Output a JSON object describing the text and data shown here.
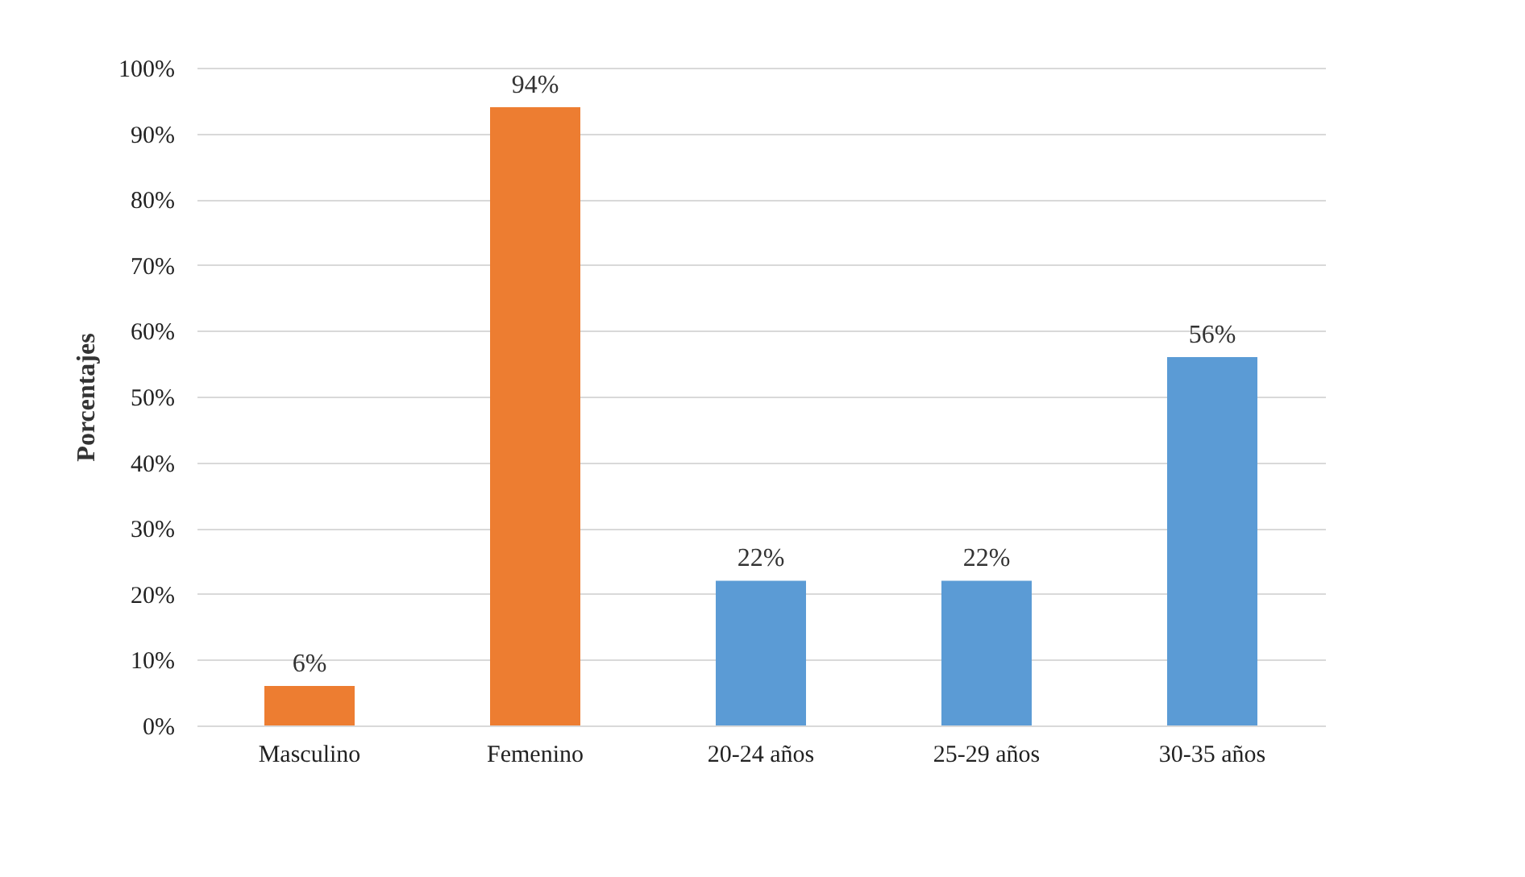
{
  "chart_data": {
    "type": "bar",
    "categories": [
      "Masculino",
      "Femenino",
      "20-24 años",
      "25-29 años",
      "30-35 años"
    ],
    "values": [
      6,
      94,
      22,
      22,
      56
    ],
    "colors": [
      "#ed7d31",
      "#ed7d31",
      "#5b9bd5",
      "#5b9bd5",
      "#5b9bd5"
    ],
    "value_labels": [
      "6%",
      "94%",
      "22%",
      "22%",
      "56%"
    ],
    "ylabel": "Porcentajes",
    "ylim": [
      0,
      100
    ],
    "yticks": [
      {
        "value": 0,
        "label": "0%"
      },
      {
        "value": 10,
        "label": "10%"
      },
      {
        "value": 20,
        "label": "20%"
      },
      {
        "value": 30,
        "label": "30%"
      },
      {
        "value": 40,
        "label": "40%"
      },
      {
        "value": 50,
        "label": "50%"
      },
      {
        "value": 60,
        "label": "60%"
      },
      {
        "value": 70,
        "label": "70%"
      },
      {
        "value": 80,
        "label": "80%"
      },
      {
        "value": 90,
        "label": "90%"
      },
      {
        "value": 100,
        "label": "100%"
      }
    ],
    "grid": "y"
  }
}
